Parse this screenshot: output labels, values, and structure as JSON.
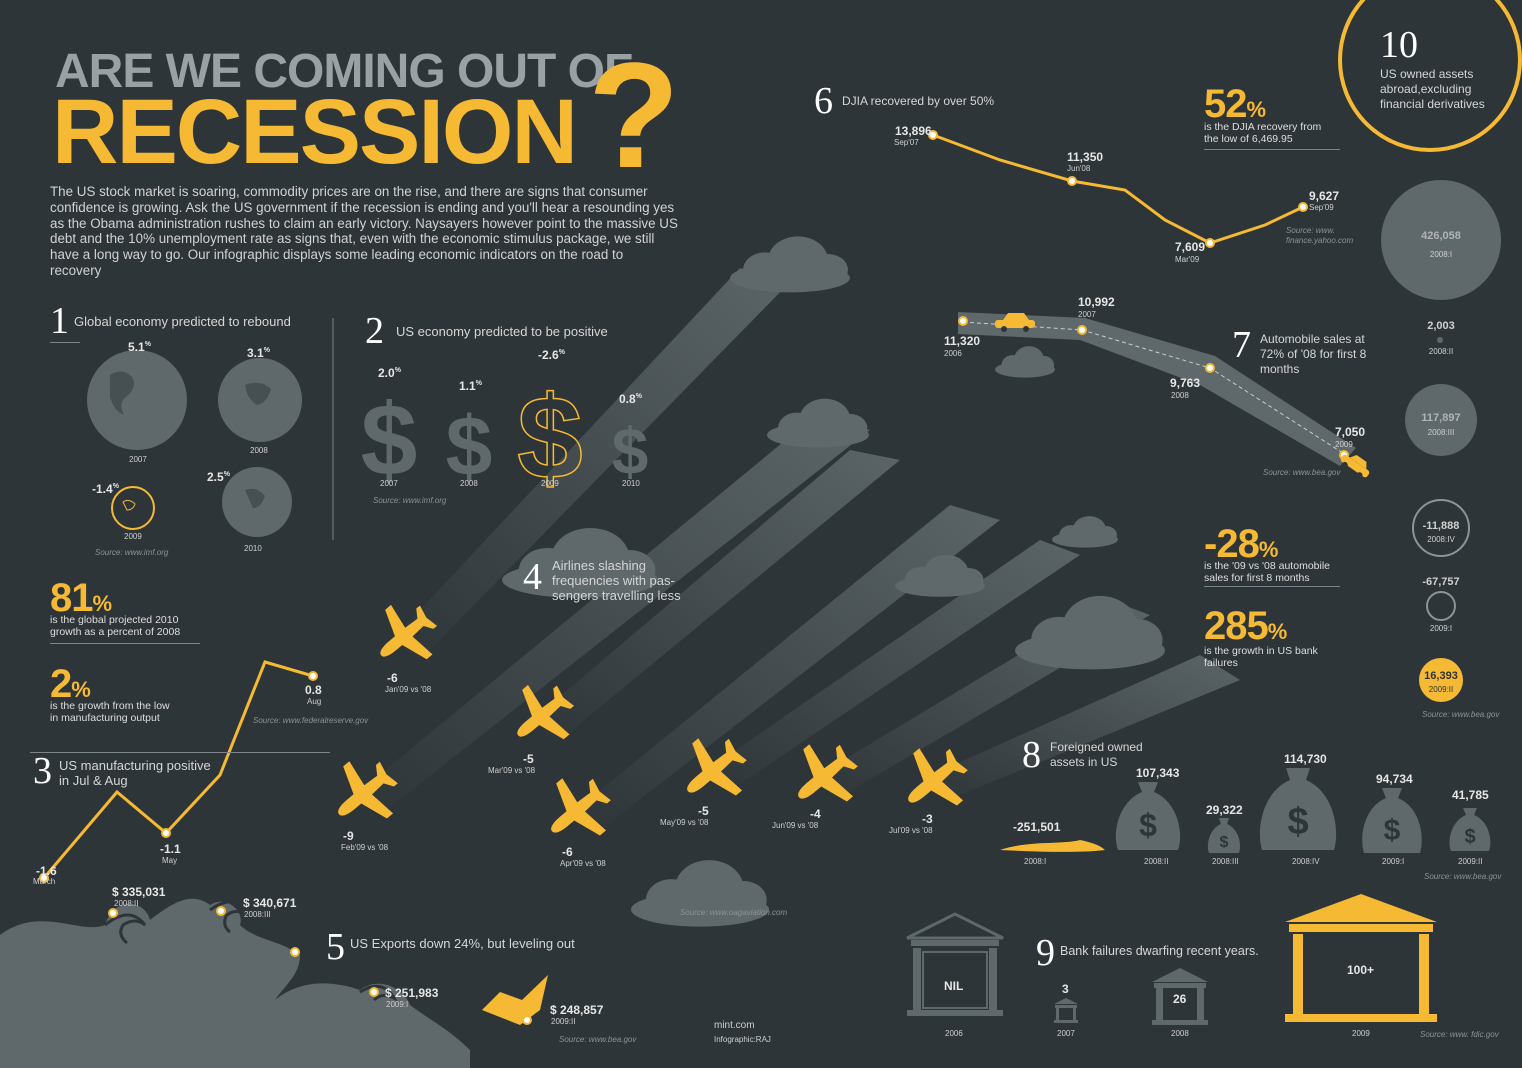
{
  "header": {
    "title_line1": "ARE WE COMING OUT OF",
    "title_line2": "RECESSION",
    "question_mark": "?",
    "intro": "The US stock market is soaring, commodity prices are on the rise, and  there are signs that consumer confidence is growing. Ask the US government if the recession is ending and you'll hear a resounding yes as the Obama administration rushes to claim an early victory. Naysayers however point to the massive US debt and the 10% unemployment rate as signs that, even with the economic stimulus package, we still have a long way to go. Our infographic displays some leading economic indicators on the road to recovery"
  },
  "colors": {
    "background": "#2e3538",
    "accent": "#f6b934",
    "muted": "#5f686b"
  },
  "s1": {
    "number": "1",
    "title": "Global economy predicted to rebound",
    "items": [
      {
        "value": "5.1",
        "unit": "%",
        "year": "2007"
      },
      {
        "value": "3.1",
        "unit": "%",
        "year": "2008"
      },
      {
        "value": "-1.4",
        "unit": "%",
        "year": "2009"
      },
      {
        "value": "2.5",
        "unit": "%",
        "year": "2010"
      }
    ],
    "source": "Source: www.imf.org"
  },
  "s2": {
    "number": "2",
    "title": "US economy predicted to be positive",
    "items": [
      {
        "value": "2.0",
        "unit": "%",
        "year": "2007"
      },
      {
        "value": "1.1",
        "unit": "%",
        "year": "2008"
      },
      {
        "value": "-2.6",
        "unit": "%",
        "year": "2009"
      },
      {
        "value": "0.8",
        "unit": "%",
        "year": "2010"
      }
    ],
    "dollar_icon": "dollar-sign-icon",
    "source": "Source: www.imf.org"
  },
  "stat81": {
    "value": "81",
    "unit": "%",
    "desc_1": "is the global projected 2010",
    "desc_2": "growth as a percent of 2008"
  },
  "stat2": {
    "value": "2",
    "unit": "%",
    "desc_1": "is the growth from the low",
    "desc_2": "in manufacturing output"
  },
  "s3": {
    "number": "3",
    "title_1": "US manufacturing positive",
    "title_2": "in Jul & Aug",
    "points": [
      {
        "value": "-1.6",
        "label": "March"
      },
      {
        "value": "-1.1",
        "label": "May"
      },
      {
        "value": "0.8",
        "label": "Aug"
      }
    ],
    "source": "Source: www.federalreserve.gov"
  },
  "s4": {
    "number": "4",
    "title_1": "Airlines slashing",
    "title_2": "frequencies with pas-",
    "title_3": "sengers travelling less",
    "planes": [
      {
        "value": "-6",
        "label": "Jan'09 vs '08"
      },
      {
        "value": "-9",
        "label": "Feb'09 vs '08"
      },
      {
        "value": "-5",
        "label": "Mar'09 vs '08"
      },
      {
        "value": "-6",
        "label": "Apr'09 vs '08"
      },
      {
        "value": "-5",
        "label": "May'09 vs '08"
      },
      {
        "value": "-4",
        "label": "Jun'09 vs '08"
      },
      {
        "value": "-3",
        "label": "Jul'09 vs '08"
      }
    ],
    "source": "Source: www.oagaviation.com"
  },
  "s5": {
    "number": "5",
    "title": "US Exports down 24%, but leveling out",
    "points": [
      {
        "value": "$ 335,031",
        "label": "2008:II"
      },
      {
        "value": "$ 340,671",
        "label": "2008:III"
      },
      {
        "value": "$ 251,983",
        "label": "2009:I"
      },
      {
        "value": "$ 248,857",
        "label": "2009:II"
      }
    ],
    "source": "Source: www.bea.gov"
  },
  "credits": {
    "line1": "mint.com",
    "line2": "Infographic:RAJ"
  },
  "s6": {
    "number": "6",
    "title": "DJIA recovered by over 50%",
    "points": [
      {
        "value": "13,896",
        "label": "Sep'07"
      },
      {
        "value": "11,350",
        "label": "Jun'08"
      },
      {
        "value": "7,609",
        "label": "Mar'09"
      },
      {
        "value": "9,627",
        "label": "Sep'09"
      }
    ],
    "source_1": "Source: www.",
    "source_2": "finance.yahoo.com"
  },
  "stat52": {
    "value": "52",
    "unit": "%",
    "desc_1": "is the DJIA recovery from",
    "desc_2": "the low of 6,469.95"
  },
  "s7": {
    "number": "7",
    "title_1": "Automobile sales at",
    "title_2": "72% of '08 for first 8",
    "title_3": "months",
    "points": [
      {
        "value": "11,320",
        "label": "2006"
      },
      {
        "value": "10,992",
        "label": "2007"
      },
      {
        "value": "9,763",
        "label": "2008"
      },
      {
        "value": "7,050",
        "label": "2009"
      }
    ],
    "source": "Source: www.bea.gov"
  },
  "stat28": {
    "value": "-28",
    "unit": "%",
    "desc_1": "is the '09 vs '08 automobile",
    "desc_2": "sales for first 8 months"
  },
  "stat285": {
    "value": "285",
    "unit": "%",
    "desc_1": "is the growth in US bank",
    "desc_2": "failures"
  },
  "s8": {
    "number": "8",
    "title_1": "Foreigned owned",
    "title_2": "assets in US",
    "items": [
      {
        "value": "-251,501",
        "label": "2008:I"
      },
      {
        "value": "107,343",
        "label": "2008:II"
      },
      {
        "value": "29,322",
        "label": "2008:III"
      },
      {
        "value": "114,730",
        "label": "2008:IV"
      },
      {
        "value": "94,734",
        "label": "2009:I"
      },
      {
        "value": "41,785",
        "label": "2009:II"
      }
    ],
    "source": "Source: www.bea.gov"
  },
  "s9": {
    "number": "9",
    "title": "Bank failures dwarfing recent years.",
    "items": [
      {
        "value": "NIL",
        "year": "2006"
      },
      {
        "value": "3",
        "year": "2007"
      },
      {
        "value": "26",
        "year": "2008"
      },
      {
        "value": "100+",
        "year": "2009"
      }
    ],
    "source": "Source: www. fdic.gov"
  },
  "s10": {
    "number": "10",
    "title_1": "US owned assets",
    "title_2": "abroad,excluding",
    "title_3": "financial derivatives",
    "items": [
      {
        "value": "426,058",
        "label": "2008:I"
      },
      {
        "value": "2,003",
        "label": "2008:II"
      },
      {
        "value": "117,897",
        "label": "2008:III"
      },
      {
        "value": "-11,888",
        "label": "2008:IV"
      },
      {
        "value": "-67,757",
        "label": "2009:I"
      },
      {
        "value": "16,393",
        "label": "2009:II"
      }
    ],
    "source": "Source: www.bea.gov"
  }
}
